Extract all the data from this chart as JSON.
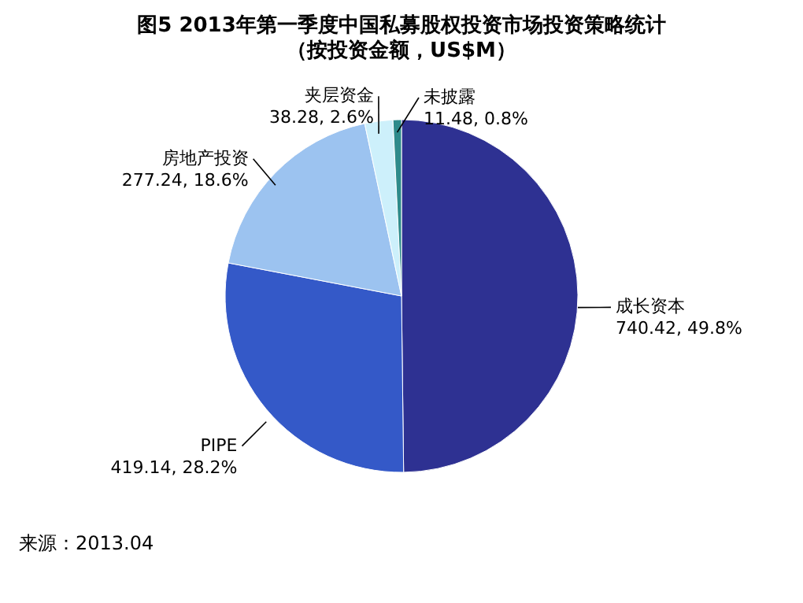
{
  "chart_data": {
    "type": "pie",
    "title": "图5 2013年第一季度中国私募股权投资市场投资策略统计",
    "subtitle": "（按投资金额，US$M）",
    "categories": [
      "成长资本",
      "PIPE",
      "房地产投资",
      "夹层资金",
      "未披露"
    ],
    "values": [
      740.42,
      419.14,
      277.24,
      38.28,
      11.48
    ],
    "colors": [
      "#2e3192",
      "#3459c8",
      "#9cc3f0",
      "#cdf0fb",
      "#2e8b8b"
    ],
    "value_labels": [
      "740.42, 49.8%",
      "419.14, 28.2%",
      "277.24, 18.6%",
      "38.28, 2.6%",
      "11.48, 0.8%"
    ],
    "annotations": [
      "来源：2013.04"
    ]
  }
}
